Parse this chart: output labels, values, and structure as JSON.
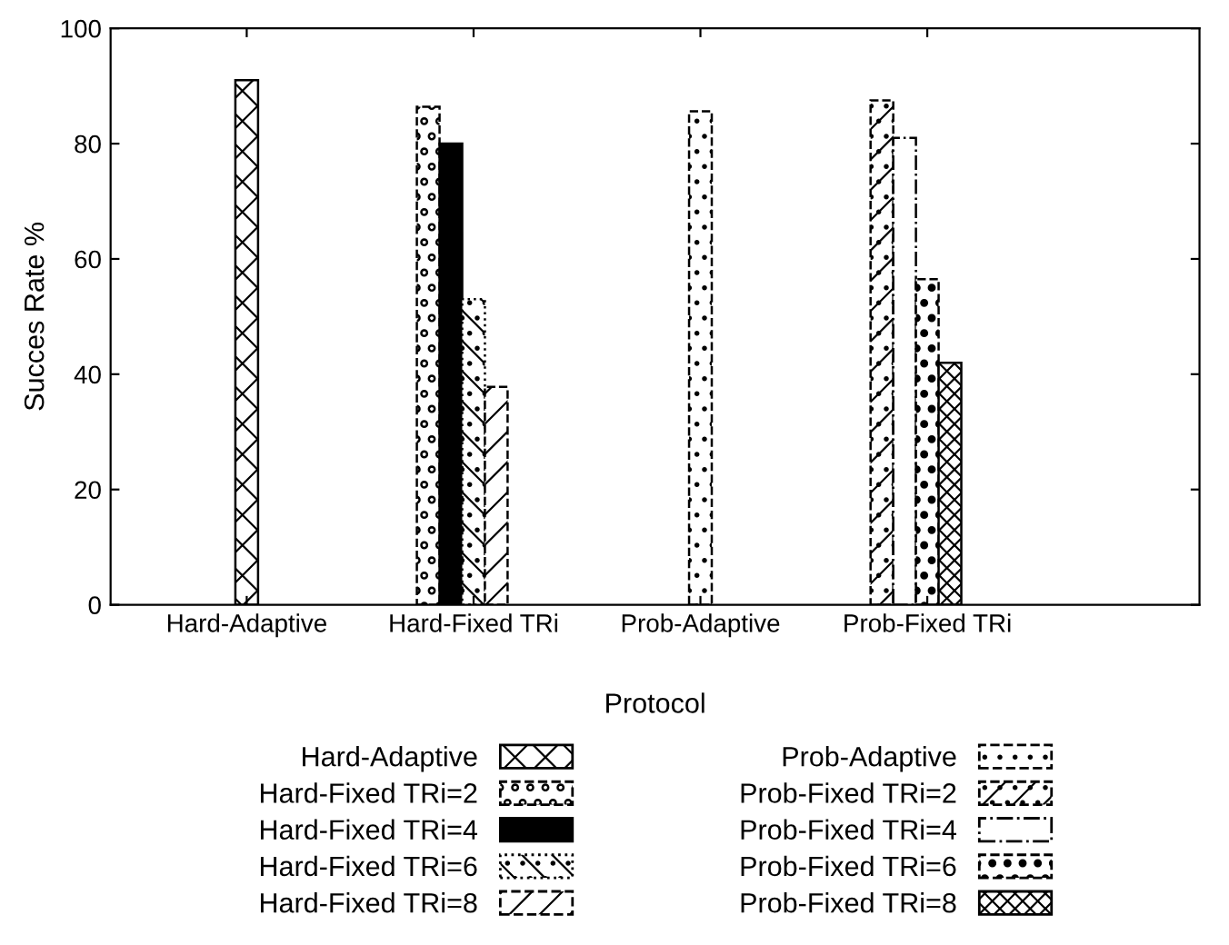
{
  "chart_data": {
    "type": "bar",
    "xlabel": "Protocol",
    "ylabel": "Succes Rate %",
    "categories": [
      "Hard-Adaptive",
      "Hard-Fixed TRi",
      "Prob-Adaptive",
      "Prob-Fixed TRi"
    ],
    "series": [
      {
        "name": "Hard-Adaptive",
        "color": "#000000",
        "values": [
          91,
          null,
          null,
          null
        ]
      },
      {
        "name": "Hard-Fixed TRi=2",
        "color": "#000000",
        "values": [
          null,
          86.4,
          null,
          null
        ]
      },
      {
        "name": "Hard-Fixed TRi=4",
        "color": "#000000",
        "values": [
          null,
          80,
          null,
          null
        ]
      },
      {
        "name": "Hard-Fixed TRi=6",
        "color": "#000000",
        "values": [
          null,
          53,
          null,
          null
        ]
      },
      {
        "name": "Hard-Fixed TRi=8",
        "color": "#000000",
        "values": [
          null,
          37.8,
          null,
          null
        ]
      },
      {
        "name": "Prob-Adaptive",
        "color": "#000000",
        "values": [
          null,
          null,
          85.6,
          null
        ]
      },
      {
        "name": "Prob-Fixed TRi=2",
        "color": "#000000",
        "values": [
          null,
          null,
          null,
          87.5
        ]
      },
      {
        "name": "Prob-Fixed TRi=4",
        "color": "#000000",
        "values": [
          null,
          null,
          null,
          81
        ]
      },
      {
        "name": "Prob-Fixed TRi=6",
        "color": "#000000",
        "values": [
          null,
          null,
          null,
          56.5
        ]
      },
      {
        "name": "Prob-Fixed TRi=8",
        "color": "#000000",
        "values": [
          null,
          null,
          null,
          42
        ]
      }
    ],
    "ylim": [
      0,
      100
    ],
    "yticks": [
      0,
      20,
      40,
      60,
      80,
      100
    ],
    "grid": false,
    "legend": "bottom"
  }
}
